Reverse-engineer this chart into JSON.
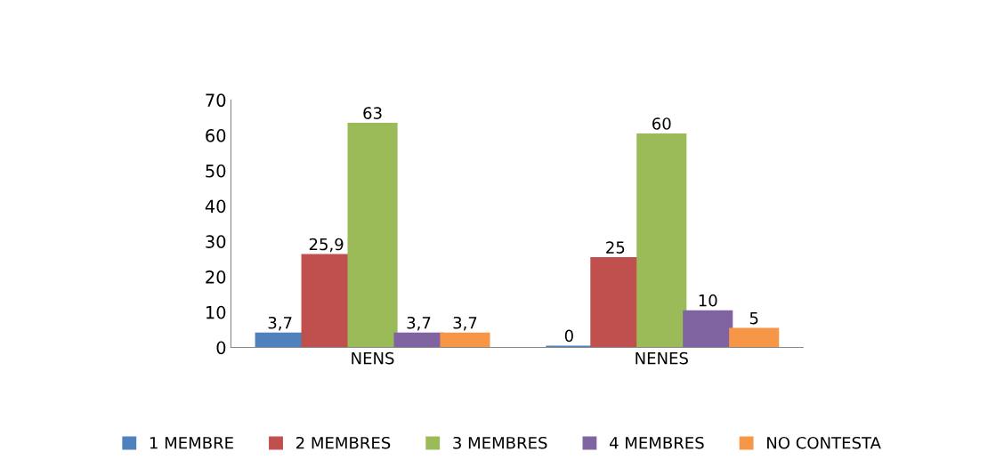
{
  "chart_data": {
    "type": "bar",
    "categories": [
      "NENS",
      "NENES"
    ],
    "series": [
      {
        "name": "1 MEMBRE",
        "color": "#4f81bd",
        "values": [
          3.7,
          0
        ],
        "value_labels": [
          "3,7",
          "0"
        ]
      },
      {
        "name": "2 MEMBRES",
        "color": "#c0504d",
        "values": [
          25.9,
          25
        ],
        "value_labels": [
          "25,9",
          "25"
        ]
      },
      {
        "name": "3 MEMBRES",
        "color": "#9bbb59",
        "values": [
          63,
          60
        ],
        "value_labels": [
          "63",
          "60"
        ]
      },
      {
        "name": "4 MEMBRES",
        "color": "#8064a2",
        "values": [
          3.7,
          10
        ],
        "value_labels": [
          "3,7",
          "10"
        ]
      },
      {
        "name": "NO CONTESTA",
        "color": "#f79646",
        "values": [
          3.7,
          5
        ],
        "value_labels": [
          "3,7",
          "5"
        ]
      }
    ],
    "ylim": [
      0,
      70
    ],
    "yticks": [
      0,
      10,
      20,
      30,
      40,
      50,
      60,
      70
    ],
    "grid": false,
    "legend": "bottom"
  }
}
